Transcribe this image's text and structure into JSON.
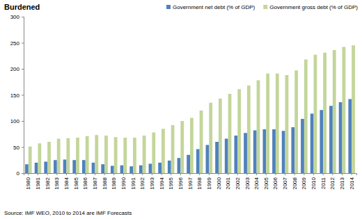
{
  "chart_data": {
    "type": "bar",
    "title": "Burdened",
    "source": "Source: IMF WEO, 2010 to 2014 are IMF Forecasts",
    "categories": [
      "1980",
      "1981",
      "1982",
      "1983",
      "1984",
      "1985",
      "1986",
      "1987",
      "1988",
      "1989",
      "1990",
      "1991",
      "1992",
      "1993",
      "1994",
      "1995",
      "1996",
      "1997",
      "1998",
      "1999",
      "2000",
      "2001",
      "2002",
      "2003",
      "2004",
      "2005",
      "2006",
      "2007",
      "2008",
      "2009",
      "2010",
      "2011",
      "2012",
      "2013",
      "2014"
    ],
    "series": [
      {
        "name": "Government net debt (% of GDP)",
        "color": "#4f81bd",
        "values": [
          17,
          20,
          22,
          25,
          26,
          25,
          25,
          20,
          17,
          14,
          15,
          13,
          15,
          18,
          20,
          24,
          29,
          35,
          46,
          54,
          60,
          66,
          72,
          77,
          82,
          84,
          84,
          81,
          88,
          104,
          114,
          121,
          129,
          136,
          142
        ]
      },
      {
        "name": "Government gross debt (% of GDP)",
        "color": "#c3d69b",
        "values": [
          51,
          57,
          60,
          66,
          67,
          68,
          71,
          73,
          72,
          69,
          68,
          68,
          72,
          78,
          85,
          92,
          100,
          106,
          120,
          135,
          143,
          152,
          161,
          168,
          178,
          191,
          191,
          188,
          197,
          218,
          227,
          231,
          236,
          242,
          245
        ]
      }
    ],
    "ylim": [
      0,
      300
    ],
    "yticks": [
      0,
      50,
      100,
      150,
      200,
      250,
      300
    ],
    "grid": false,
    "legend": "top-right"
  }
}
